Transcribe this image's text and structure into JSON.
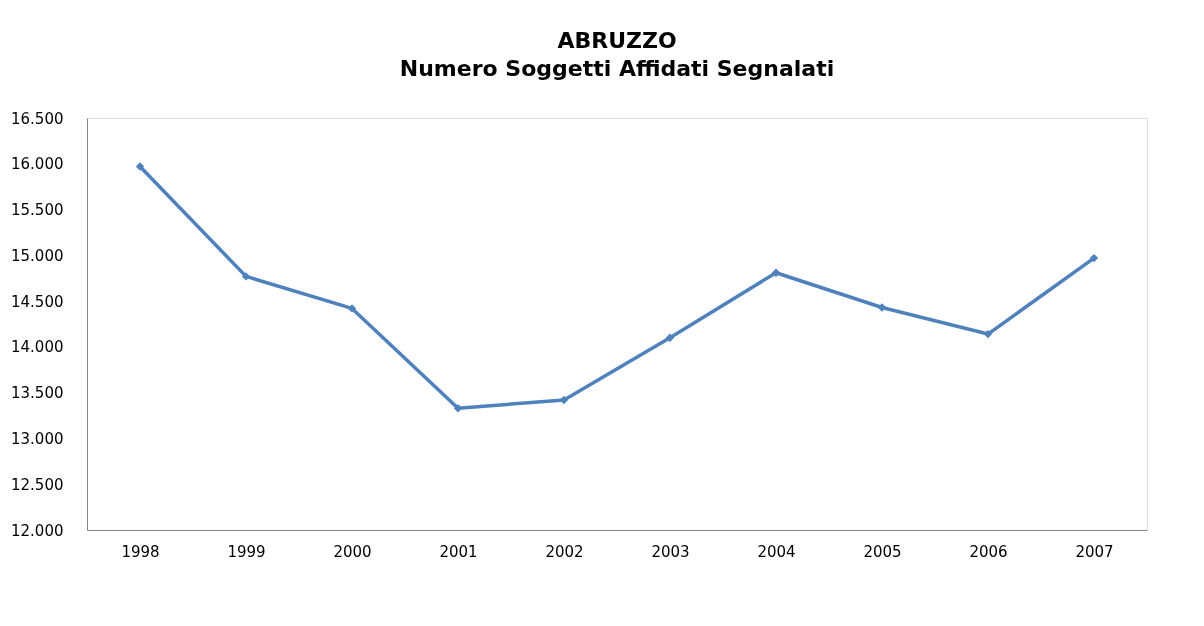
{
  "chart_data": {
    "type": "line",
    "title": "ABRUZZO",
    "subtitle": "Numero Soggetti Affidati Segnalati",
    "categories": [
      "1998",
      "1999",
      "2000",
      "2001",
      "2002",
      "2003",
      "2004",
      "2005",
      "2006",
      "2007"
    ],
    "series": [
      {
        "color": "#4f81bd",
        "values": [
          15970,
          14770,
          14420,
          13330,
          13420,
          14100,
          14810,
          14430,
          14140,
          14970
        ]
      }
    ],
    "ylim": [
      12000,
      16500
    ],
    "yticks": [
      {
        "value": 12000,
        "label": "12.000"
      },
      {
        "value": 12500,
        "label": "12.500"
      },
      {
        "value": 13000,
        "label": "13.000"
      },
      {
        "value": 13500,
        "label": "13.500"
      },
      {
        "value": 14000,
        "label": "14.000"
      },
      {
        "value": 14500,
        "label": "14.500"
      },
      {
        "value": 15000,
        "label": "15.000"
      },
      {
        "value": 15500,
        "label": "15.500"
      },
      {
        "value": 16000,
        "label": "16.000"
      },
      {
        "value": 16500,
        "label": "16.500"
      }
    ],
    "grid": false,
    "marker": "diamond",
    "line_style": "solid"
  }
}
